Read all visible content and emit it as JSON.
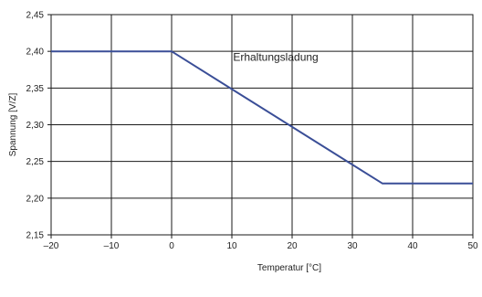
{
  "chart_data": {
    "type": "line",
    "title": "",
    "xlabel": "Temperatur [°C]",
    "ylabel": "Spannung [V/Z]",
    "xlim": [
      -20,
      50
    ],
    "ylim": [
      2.15,
      2.45
    ],
    "x_ticks": [
      -20,
      -10,
      0,
      10,
      20,
      30,
      40,
      50
    ],
    "x_tick_labels": [
      "–20",
      "–10",
      "0",
      "10",
      "20",
      "30",
      "40",
      "50"
    ],
    "y_ticks": [
      2.15,
      2.2,
      2.25,
      2.3,
      2.35,
      2.4,
      2.45
    ],
    "y_tick_labels": [
      "2,15",
      "2,20",
      "2,25",
      "2,30",
      "2,35",
      "2,40",
      "2,45"
    ],
    "grid": true,
    "legend": "none",
    "series": [
      {
        "name": "Erhaltungsladung",
        "color": "#3a4e97",
        "x": [
          -20,
          0,
          35,
          50
        ],
        "y": [
          2.4,
          2.4,
          2.22,
          2.22
        ]
      }
    ],
    "annotations": [
      {
        "text": "Erhaltungsladung",
        "x": 10.2,
        "y": 2.387
      }
    ]
  }
}
